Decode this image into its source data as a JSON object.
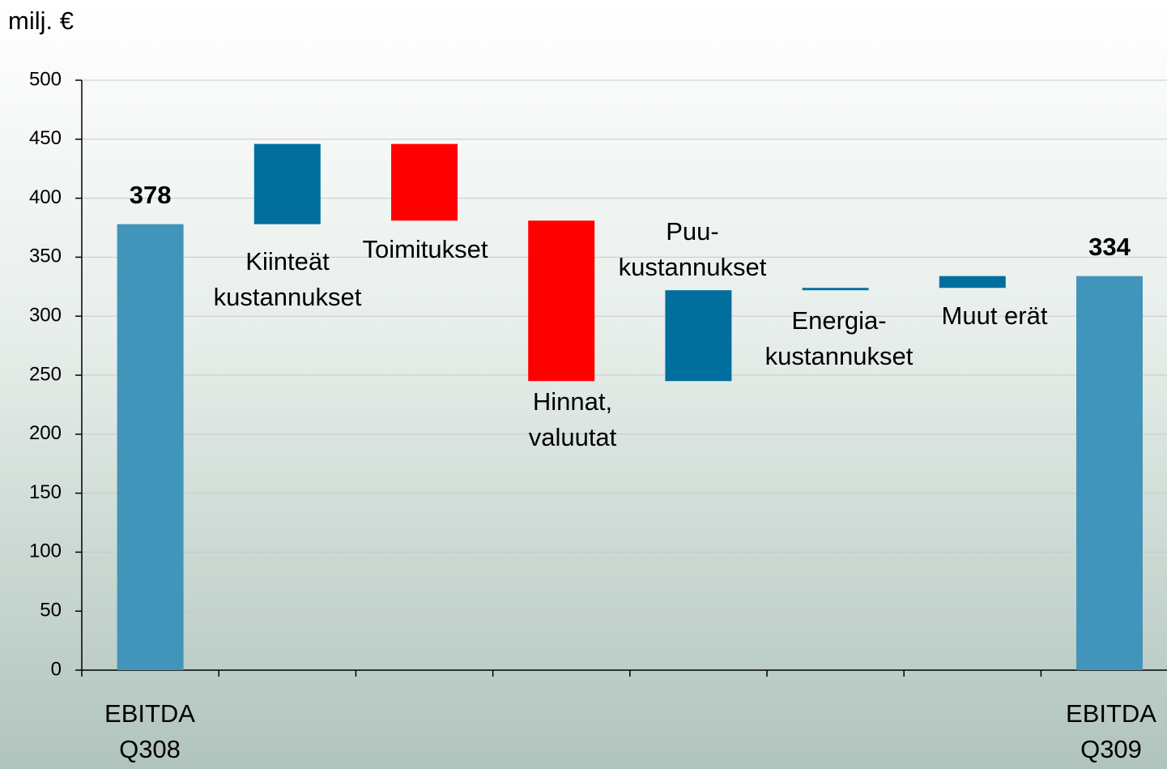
{
  "chart_data": {
    "type": "waterfall",
    "y_axis_label": "milj. €",
    "categories": [
      [
        "EBITDA",
        "Q308"
      ],
      [
        "Kiinteät",
        "kustannukset"
      ],
      [
        "Toimitukset"
      ],
      [
        "Hinnat,",
        "valuutat"
      ],
      [
        "Puu-",
        "kustannukset"
      ],
      [
        "Energia-",
        "kustannukset"
      ],
      [
        "Muut erät"
      ],
      [
        "EBITDA",
        "Q309"
      ]
    ],
    "values": [
      378,
      68,
      -65,
      -136,
      77,
      2,
      10,
      334
    ],
    "measure": [
      "absolute",
      "relative",
      "relative",
      "relative",
      "relative",
      "relative",
      "relative",
      "absolute"
    ],
    "colors": {
      "absolute": "#4195bb",
      "increase": "#006f9e",
      "decrease": "#ff0000"
    },
    "ylim": [
      0,
      500
    ],
    "yticks": [
      0,
      50,
      100,
      150,
      200,
      250,
      300,
      350,
      400,
      450,
      500
    ],
    "grid": true
  }
}
